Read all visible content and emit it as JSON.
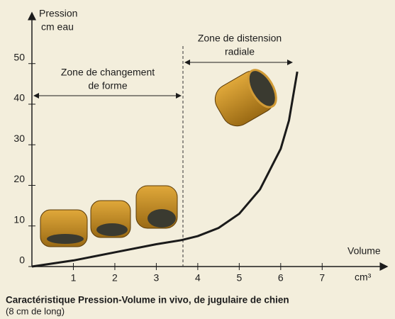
{
  "chart_data": {
    "type": "line",
    "ylabel": [
      "Pression",
      "cm eau"
    ],
    "xlabel": "Volume",
    "xunit": "cm³",
    "annotations": [
      [
        "Zone de changement",
        "de forme"
      ],
      [
        "Zone de distension",
        "radiale"
      ]
    ],
    "caption": [
      "Caractéristique Pression-Volume in vivo, de jugulaire de chien",
      "(8 cm de long)"
    ],
    "x": [
      0,
      1,
      2,
      3,
      3.6,
      4,
      4.5,
      5,
      5.5,
      6,
      6.2,
      6.4
    ],
    "values": [
      0,
      1.5,
      3.5,
      5.5,
      6.5,
      7.5,
      9.5,
      13,
      19,
      29,
      36,
      48
    ],
    "color": "#1a1a1a",
    "xlim": [
      0,
      8.5
    ],
    "ylim": [
      0,
      62
    ],
    "xticks": [
      1,
      2,
      3,
      4,
      5,
      6,
      7
    ],
    "yticks": [
      0,
      10,
      20,
      30,
      40,
      50
    ]
  }
}
